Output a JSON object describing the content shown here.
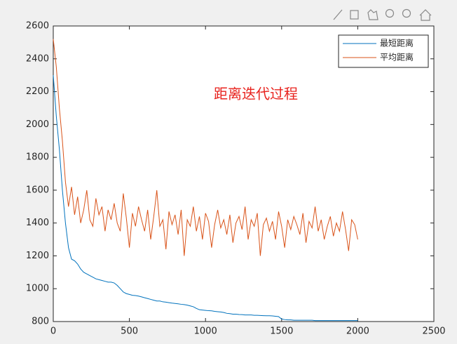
{
  "chart_data": {
    "type": "line",
    "annotation": "距离迭代过程",
    "x": [
      0,
      20,
      40,
      60,
      80,
      100,
      120,
      140,
      160,
      180,
      200,
      220,
      240,
      260,
      280,
      300,
      320,
      340,
      360,
      380,
      400,
      420,
      440,
      460,
      480,
      500,
      520,
      540,
      560,
      580,
      600,
      620,
      640,
      660,
      680,
      700,
      720,
      740,
      760,
      780,
      800,
      820,
      840,
      860,
      880,
      900,
      920,
      940,
      960,
      980,
      1000,
      1020,
      1040,
      1060,
      1080,
      1100,
      1120,
      1140,
      1160,
      1180,
      1200,
      1220,
      1240,
      1260,
      1280,
      1300,
      1320,
      1340,
      1360,
      1380,
      1400,
      1420,
      1440,
      1460,
      1480,
      1500,
      1520,
      1540,
      1560,
      1580,
      1600,
      1620,
      1640,
      1660,
      1680,
      1700,
      1720,
      1740,
      1760,
      1780,
      1800,
      1820,
      1840,
      1860,
      1880,
      1900,
      1920,
      1940,
      1960,
      1980,
      2000
    ],
    "series": [
      {
        "name": "最短距离",
        "color": "#0072bd",
        "values": [
          2300,
          2050,
          1850,
          1600,
          1400,
          1250,
          1180,
          1170,
          1150,
          1120,
          1100,
          1090,
          1080,
          1070,
          1060,
          1055,
          1050,
          1045,
          1040,
          1040,
          1035,
          1020,
          1000,
          980,
          970,
          965,
          960,
          958,
          955,
          950,
          945,
          940,
          935,
          930,
          925,
          925,
          920,
          918,
          915,
          912,
          910,
          908,
          905,
          903,
          900,
          895,
          890,
          880,
          872,
          870,
          868,
          866,
          865,
          862,
          860,
          858,
          855,
          850,
          848,
          845,
          845,
          843,
          842,
          840,
          840,
          840,
          838,
          838,
          837,
          836,
          835,
          835,
          834,
          832,
          830,
          815,
          812,
          810,
          810,
          808,
          808,
          808,
          808,
          808,
          808,
          808,
          806,
          806,
          806,
          806,
          806,
          806,
          806,
          806,
          806,
          806,
          806,
          806,
          806,
          806,
          806
        ]
      },
      {
        "name": "平均距离",
        "color": "#d95319",
        "values": [
          2520,
          2350,
          2100,
          1900,
          1650,
          1500,
          1620,
          1450,
          1560,
          1400,
          1480,
          1600,
          1420,
          1380,
          1550,
          1450,
          1500,
          1350,
          1480,
          1420,
          1520,
          1400,
          1350,
          1580,
          1430,
          1250,
          1460,
          1380,
          1500,
          1420,
          1350,
          1480,
          1300,
          1440,
          1600,
          1380,
          1420,
          1240,
          1470,
          1390,
          1450,
          1330,
          1480,
          1200,
          1420,
          1380,
          1500,
          1350,
          1440,
          1300,
          1460,
          1410,
          1250,
          1390,
          1480,
          1370,
          1420,
          1330,
          1450,
          1280,
          1400,
          1440,
          1360,
          1500,
          1300,
          1420,
          1380,
          1460,
          1200,
          1390,
          1430,
          1350,
          1410,
          1300,
          1470,
          1380,
          1250,
          1420,
          1360,
          1440,
          1390,
          1330,
          1460,
          1280,
          1410,
          1370,
          1500,
          1350,
          1420,
          1300,
          1380,
          1440,
          1320,
          1400,
          1350,
          1470,
          1360,
          1230,
          1420,
          1390,
          1300
        ]
      }
    ],
    "xlim": [
      0,
      2500
    ],
    "ylim": [
      800,
      2600
    ],
    "xticks": [
      0,
      500,
      1000,
      1500,
      2000,
      2500
    ],
    "yticks": [
      800,
      1000,
      1200,
      1400,
      1600,
      1800,
      2000,
      2200,
      2400,
      2600
    ],
    "legend": "top-right",
    "grid": false
  }
}
